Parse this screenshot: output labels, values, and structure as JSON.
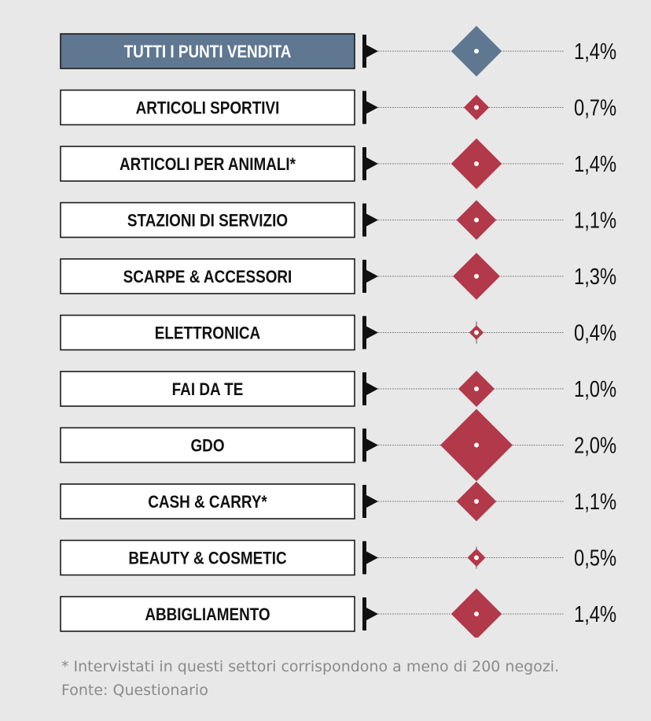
{
  "colors": {
    "background": "#e8e8e8",
    "highlight_box": "#5f7791",
    "diamond_total": "#5f7791",
    "diamond_sector": "#b2394a",
    "box_border": "#1a1a1a",
    "text": "#111111",
    "footnote": "#8a8a8a"
  },
  "chart_data": {
    "type": "scatter",
    "marker": "diamond",
    "value_unit": "%",
    "categories": [
      "TUTTI I PUNTI VENDITA",
      "ARTICOLI SPORTIVI",
      "ARTICOLI PER ANIMALI*",
      "STAZIONI DI SERVIZIO",
      "SCARPE & ACCESSORI",
      "ELETTRONICA",
      "FAI DA TE",
      "GDO",
      "CASH & CARRY*",
      "BEAUTY & COSMETIC",
      "ABBIGLIAMENTO"
    ],
    "values": [
      1.4,
      0.7,
      1.4,
      1.1,
      1.3,
      0.4,
      1.0,
      2.0,
      1.1,
      0.5,
      1.4
    ],
    "value_labels": [
      "1,4%",
      "0,7%",
      "1,4%",
      "1,1%",
      "1,3%",
      "0,4%",
      "1,0%",
      "2,0%",
      "1,1%",
      "0,5%",
      "1,4%"
    ],
    "highlighted_index": 0
  },
  "footnote": {
    "note": "* Intervistati in questi settori corrispondono a meno di 200 negozi.",
    "source": "Fonte: Questionario"
  }
}
